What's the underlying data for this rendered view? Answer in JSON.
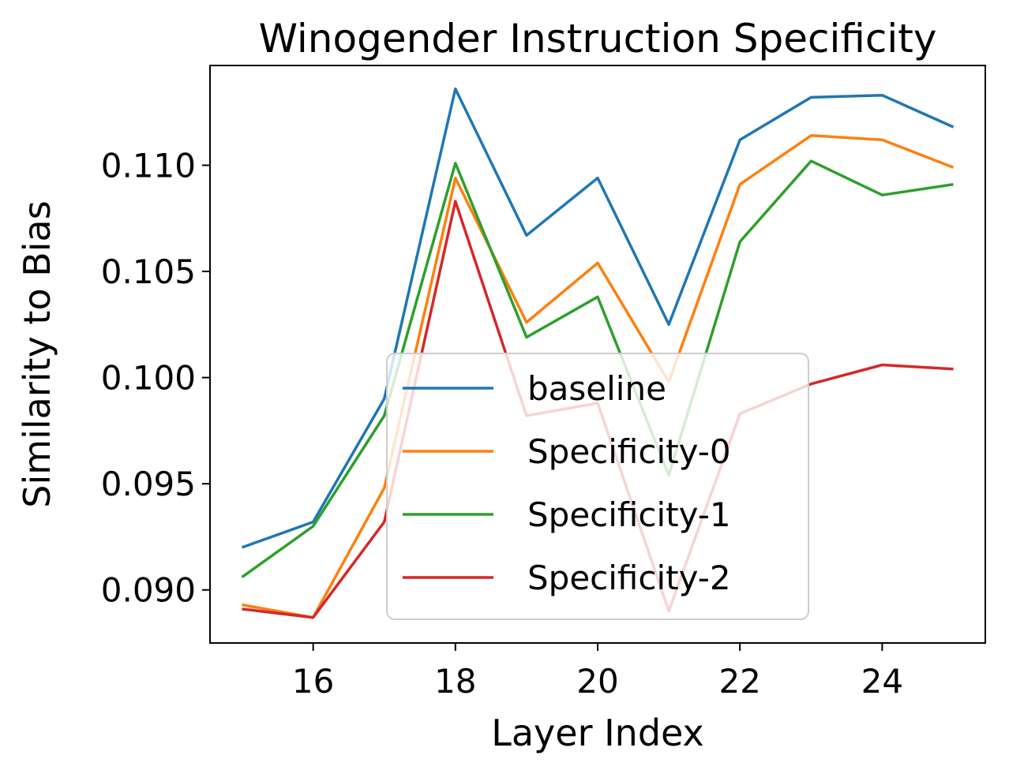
{
  "chart_data": {
    "type": "line",
    "title": "Winogender Instruction Specificity",
    "xlabel": "Layer Index",
    "ylabel": "Similarity to Bias",
    "x": [
      15,
      16,
      17,
      18,
      19,
      20,
      21,
      22,
      23,
      24,
      25
    ],
    "xticks": [
      16,
      18,
      20,
      22,
      24
    ],
    "yticks": [
      0.09,
      0.095,
      0.1,
      0.105,
      0.11
    ],
    "ytick_labels": [
      "0.090",
      "0.095",
      "0.100",
      "0.105",
      "0.110"
    ],
    "xlim": [
      14.55,
      25.45
    ],
    "ylim": [
      0.0875,
      0.1147
    ],
    "grid": false,
    "legend_position": "lower-center",
    "series": [
      {
        "name": "baseline",
        "color": "#1f77b4",
        "values": [
          0.092,
          0.0932,
          0.099,
          0.1136,
          0.1067,
          0.1094,
          0.1025,
          0.1112,
          0.1132,
          0.1133,
          0.1118
        ]
      },
      {
        "name": "Specificity-0",
        "color": "#ff7f0e",
        "values": [
          0.0893,
          0.0887,
          0.0948,
          0.1094,
          0.1026,
          0.1054,
          0.0998,
          0.1091,
          0.1114,
          0.1112,
          0.1099
        ]
      },
      {
        "name": "Specificity-1",
        "color": "#2ca02c",
        "values": [
          0.0906,
          0.093,
          0.0982,
          0.1101,
          0.1019,
          0.1038,
          0.0954,
          0.1064,
          0.1102,
          0.1086,
          0.1091
        ]
      },
      {
        "name": "Specificity-2",
        "color": "#d62728",
        "values": [
          0.0891,
          0.0887,
          0.0932,
          0.1083,
          0.0982,
          0.0988,
          0.089,
          0.0983,
          0.0997,
          0.1006,
          0.1004
        ]
      }
    ]
  }
}
